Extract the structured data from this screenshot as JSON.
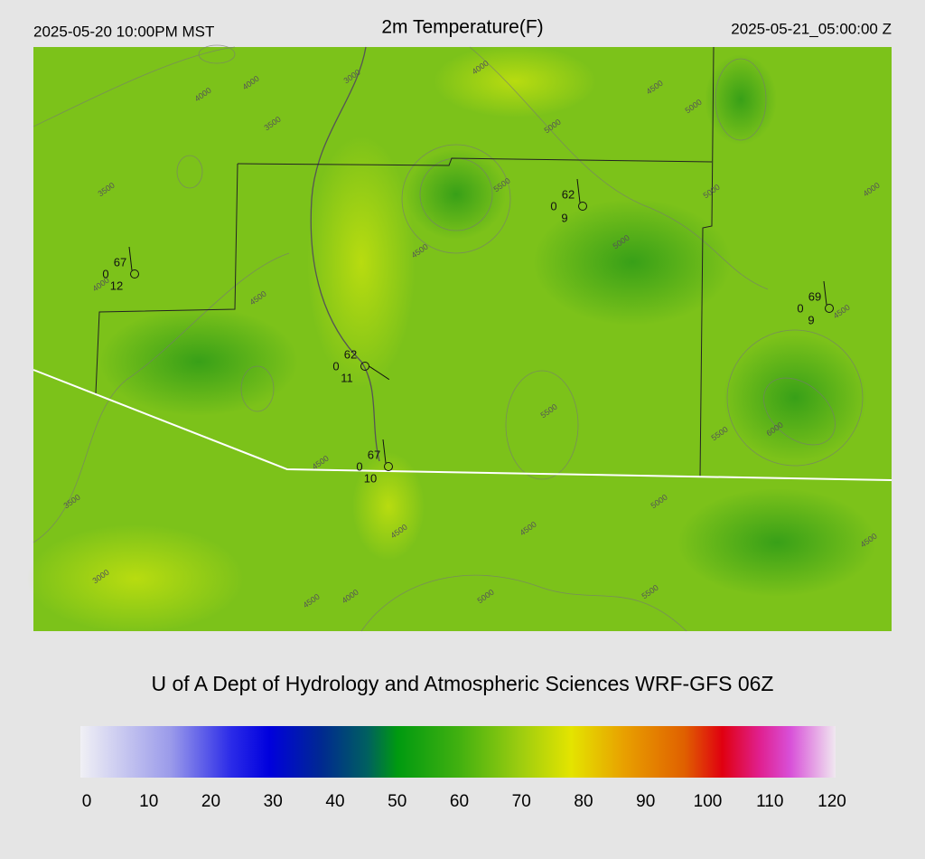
{
  "header": {
    "left": "2025-05-20 10:00PM MST",
    "title": "2m Temperature(F)",
    "right": "2025-05-21_05:00:00 Z"
  },
  "stations": [
    {
      "temp": 67,
      "dewpoint": 0,
      "wind": 12
    },
    {
      "temp": 62,
      "dewpoint": 0,
      "wind": 9
    },
    {
      "temp": 62,
      "dewpoint": 0,
      "wind": 11
    },
    {
      "temp": 67,
      "dewpoint": 0,
      "wind": 10
    },
    {
      "temp": 69,
      "dewpoint": 0,
      "wind": 9
    }
  ],
  "contour_labels": [
    4000,
    4000,
    3500,
    3500,
    3000,
    4000,
    4500,
    5000,
    5000,
    5500,
    5000,
    4000,
    5000,
    4500,
    4500,
    4000,
    4500,
    5500,
    5500,
    6000,
    4500,
    3500,
    5000,
    4500,
    4500,
    3000,
    4000,
    4500,
    5000,
    5500,
    4500
  ],
  "credit": "U of A Dept of Hydrology and Atmospheric Sciences WRF-GFS 06Z",
  "colorbar": {
    "ticks": [
      0,
      10,
      20,
      30,
      40,
      50,
      60,
      70,
      80,
      90,
      100,
      110,
      120
    ]
  }
}
